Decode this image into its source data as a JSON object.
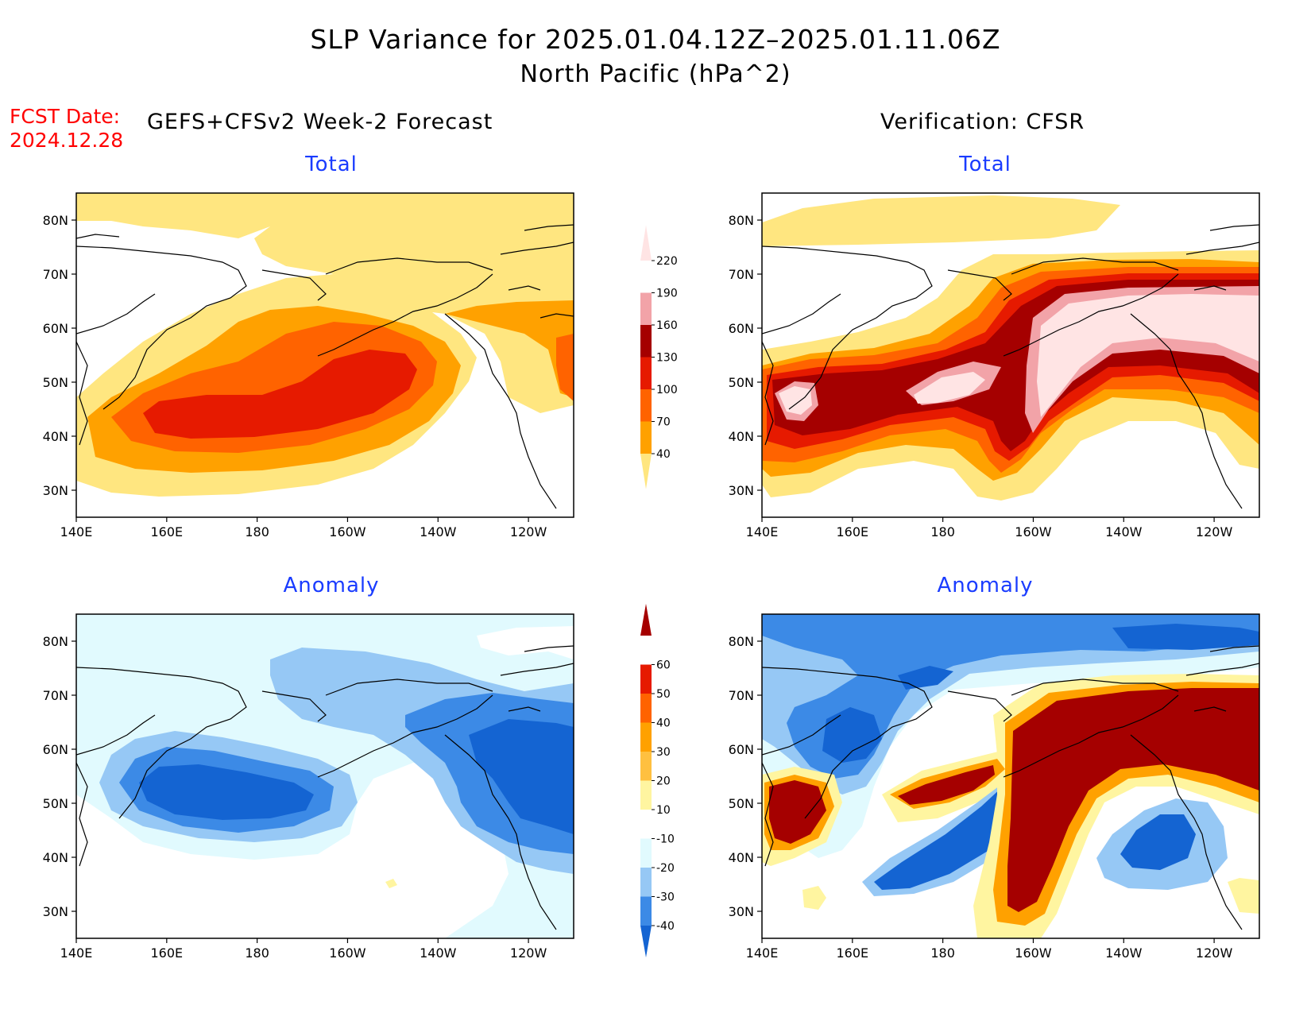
{
  "title_line1": "SLP Variance for 2025.01.04.12Z–2025.01.11.06Z",
  "title_line2": "North Pacific (hPa^2)",
  "fcst_label": "FCST Date:",
  "fcst_date": "2024.12.28",
  "left_header": "GEFS+CFSv2 Week-2 Forecast",
  "right_header": "Verification: CFSR",
  "panels": {
    "forecast_total": {
      "title": "Total"
    },
    "verif_total": {
      "title": "Total"
    },
    "forecast_anomaly": {
      "title": "Anomaly"
    },
    "verif_anomaly": {
      "title": "Anomaly"
    }
  },
  "axes": {
    "lon_labels": [
      "140E",
      "160E",
      "180",
      "160W",
      "140W",
      "120W"
    ],
    "lat_labels": [
      "80N",
      "70N",
      "60N",
      "50N",
      "40N",
      "30N"
    ]
  },
  "colorbars": {
    "total": {
      "levels": [
        "40",
        "70",
        "100",
        "130",
        "160",
        "190",
        "220"
      ],
      "colors": [
        "#ffe680",
        "#ffa100",
        "#ff6300",
        "#e61a00",
        "#a50000",
        "#f2a3a8",
        "#ffe4e4"
      ]
    },
    "anomaly": {
      "levels": [
        "-40",
        "-30",
        "-20",
        "-10",
        "10",
        "20",
        "30",
        "40",
        "50",
        "60"
      ],
      "colors": [
        "#1464d2",
        "#3c8ae6",
        "#96c8f5",
        "#e1fafe",
        "#ffffff",
        "#fff5a0",
        "#ffc040",
        "#ffa100",
        "#ff6300",
        "#e61a00",
        "#a50000"
      ]
    }
  },
  "colors": {
    "title_blue": "#1a3cff",
    "fcst_red": "#ff0000"
  }
}
